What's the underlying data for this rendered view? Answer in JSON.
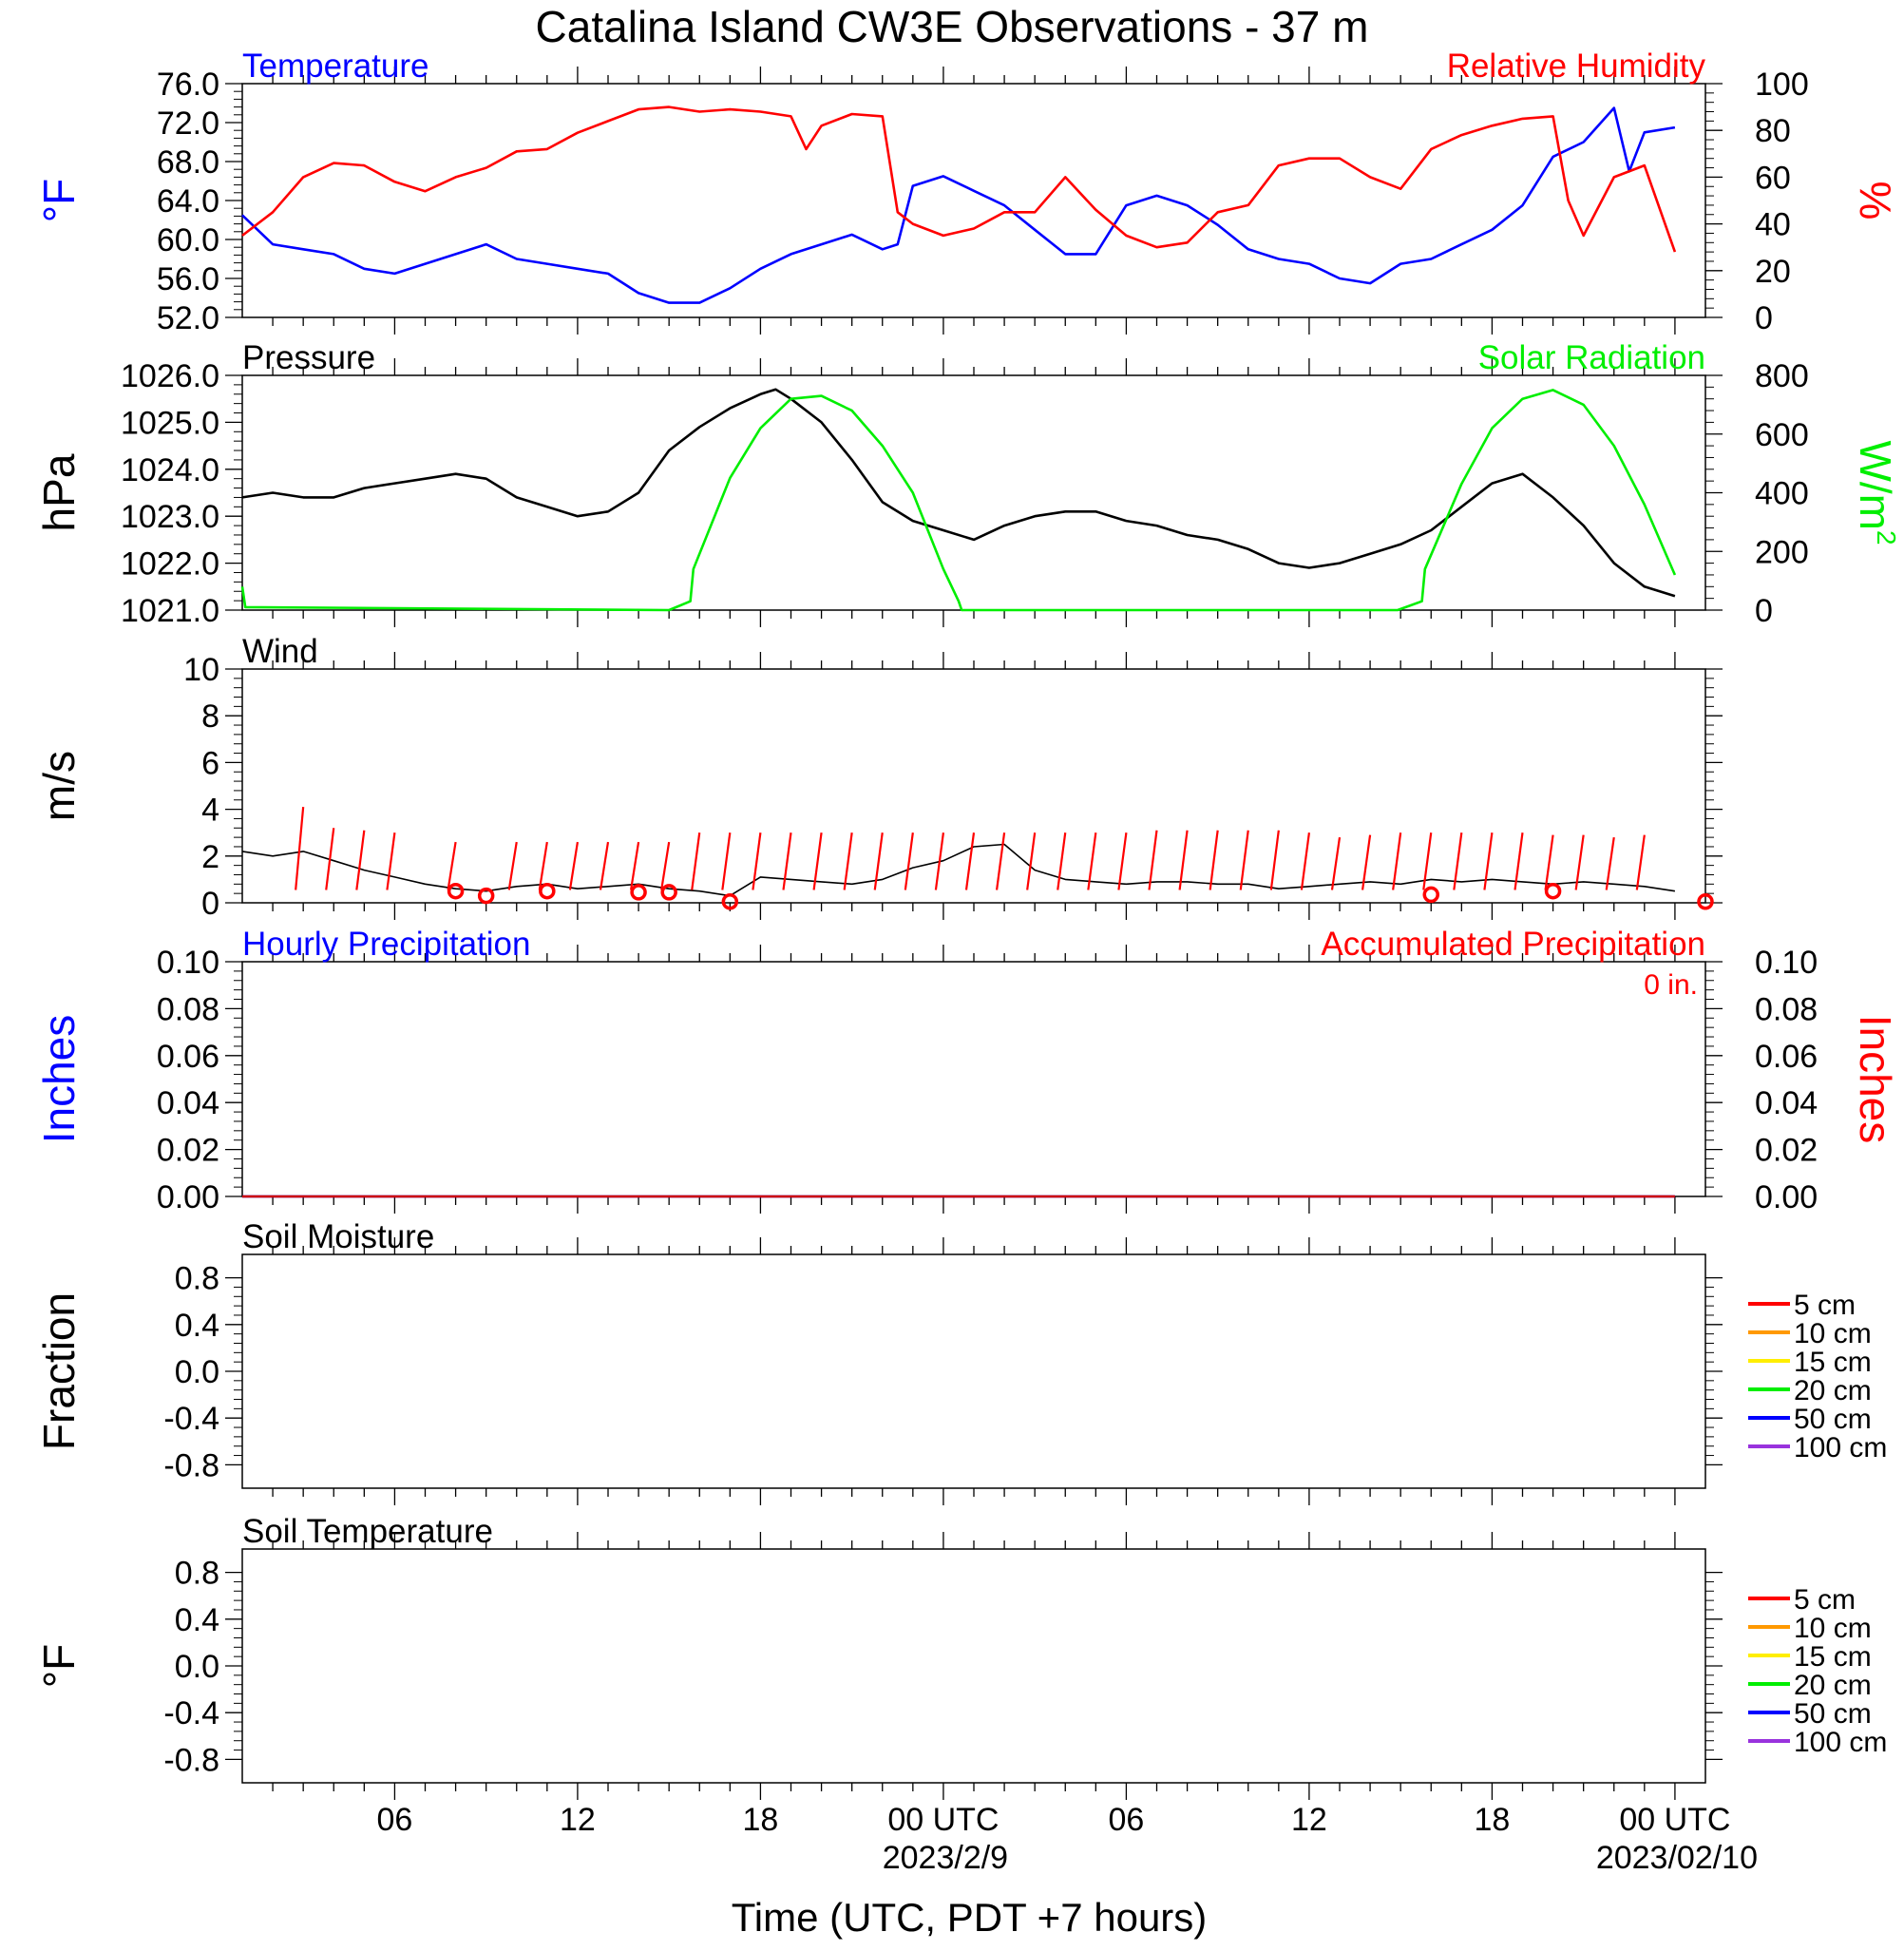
{
  "title": "Catalina Island CW3E Observations - 37 m",
  "xlabel": "Time (UTC, PDT +7 hours)",
  "x_ticks": [
    "06",
    "12",
    "18",
    "00 UTC",
    "06",
    "12",
    "18",
    "00 UTC"
  ],
  "x_dates": [
    "2023/2/9",
    "2023/02/10"
  ],
  "chart_data": [
    {
      "id": "temperature_rh",
      "type": "line",
      "left_title": "Temperature",
      "right_title": "Relative Humidity",
      "ylabel_left": "°F",
      "ylabel_right": "%",
      "ylim_left": [
        52,
        76
      ],
      "ylim_right": [
        0,
        100
      ],
      "yticks_left": [
        "52.0",
        "56.0",
        "60.0",
        "64.0",
        "68.0",
        "72.0",
        "76.0"
      ],
      "yticks_right": [
        "0",
        "20",
        "40",
        "60",
        "80",
        "100"
      ],
      "series": [
        {
          "name": "Temperature",
          "color": "#0000ff",
          "axis": "left",
          "x": [
            1,
            2,
            3,
            4,
            5,
            6,
            7,
            8,
            9,
            10,
            11,
            12,
            13,
            14,
            15,
            16,
            17,
            18,
            19,
            20,
            21,
            22,
            22.5,
            23,
            24,
            25,
            26,
            27,
            28,
            29,
            30,
            31,
            32,
            33,
            34,
            35,
            36,
            37,
            38,
            39,
            40,
            41,
            42,
            43,
            44,
            45,
            46,
            46.5,
            47,
            48
          ],
          "y": [
            62.5,
            59.5,
            59.0,
            58.5,
            57.0,
            56.5,
            57.5,
            58.5,
            59.5,
            58.0,
            57.5,
            57.0,
            56.5,
            54.5,
            53.5,
            53.5,
            55.0,
            57.0,
            58.5,
            59.5,
            60.5,
            59.0,
            59.5,
            65.5,
            66.5,
            65.0,
            63.5,
            61.0,
            58.5,
            58.5,
            63.5,
            64.5,
            63.5,
            61.5,
            59.0,
            58.0,
            57.5,
            56.0,
            55.5,
            57.5,
            58.0,
            59.5,
            61.0,
            63.5,
            68.5,
            70.0,
            73.5,
            67.0,
            71.0,
            71.5
          ]
        },
        {
          "name": "Relative Humidity",
          "color": "#ff0000",
          "axis": "right",
          "x": [
            1,
            2,
            3,
            4,
            5,
            6,
            7,
            8,
            9,
            10,
            11,
            12,
            13,
            14,
            15,
            16,
            17,
            18,
            19,
            19.5,
            20,
            21,
            22,
            22.5,
            23,
            24,
            25,
            26,
            27,
            28,
            29,
            30,
            31,
            32,
            33,
            34,
            35,
            36,
            37,
            38,
            39,
            40,
            41,
            42,
            43,
            44,
            44.5,
            45,
            46,
            47,
            48
          ],
          "y": [
            35,
            45,
            60,
            66,
            65,
            58,
            54,
            60,
            64,
            71,
            72,
            79,
            84,
            89,
            90,
            88,
            89,
            88,
            86,
            72,
            82,
            87,
            86,
            45,
            40,
            35,
            38,
            45,
            45,
            60,
            46,
            35,
            30,
            32,
            45,
            48,
            65,
            68,
            68,
            60,
            55,
            72,
            78,
            82,
            85,
            86,
            50,
            35,
            60,
            65,
            28
          ]
        }
      ]
    },
    {
      "id": "pressure_solar",
      "type": "line",
      "left_title": "Pressure",
      "right_title": "Solar Radiation",
      "ylabel_left": "hPa",
      "ylabel_right": "W/m",
      "ylabel_right_sup": "2",
      "ylim_left": [
        1021,
        1026
      ],
      "ylim_right": [
        0,
        800
      ],
      "yticks_left": [
        "1021.0",
        "1022.0",
        "1023.0",
        "1024.0",
        "1025.0",
        "1026.0"
      ],
      "yticks_right": [
        "0",
        "200",
        "400",
        "600",
        "800"
      ],
      "series": [
        {
          "name": "Pressure",
          "color": "#000000",
          "axis": "left",
          "x": [
            1,
            2,
            3,
            4,
            5,
            6,
            7,
            8,
            9,
            10,
            11,
            12,
            13,
            14,
            15,
            16,
            17,
            18,
            18.5,
            19,
            20,
            21,
            22,
            23,
            24,
            25,
            26,
            27,
            28,
            29,
            30,
            31,
            32,
            33,
            34,
            35,
            36,
            37,
            38,
            39,
            40,
            41,
            42,
            43,
            44,
            45,
            46,
            47,
            48
          ],
          "y": [
            1023.4,
            1023.5,
            1023.4,
            1023.4,
            1023.6,
            1023.7,
            1023.8,
            1023.9,
            1023.8,
            1023.4,
            1023.2,
            1023.0,
            1023.1,
            1023.5,
            1024.4,
            1024.9,
            1025.3,
            1025.6,
            1025.7,
            1025.5,
            1025.0,
            1024.2,
            1023.3,
            1022.9,
            1022.7,
            1022.5,
            1022.8,
            1023.0,
            1023.1,
            1023.1,
            1022.9,
            1022.8,
            1022.6,
            1022.5,
            1022.3,
            1022.0,
            1021.9,
            1022.0,
            1022.2,
            1022.4,
            1022.7,
            1023.2,
            1023.7,
            1023.9,
            1023.4,
            1022.8,
            1022.0,
            1021.5,
            1021.3
          ]
        },
        {
          "name": "Solar Radiation",
          "color": "#00ee00",
          "axis": "right",
          "x": [
            1,
            1.1,
            15,
            15.7,
            15.8,
            17,
            18,
            19,
            20,
            21,
            22,
            23,
            24,
            24.5,
            24.6,
            25,
            38.9,
            39.7,
            39.8,
            41,
            42,
            43,
            44,
            45,
            46,
            47,
            48
          ],
          "y": [
            80,
            10,
            0,
            30,
            140,
            450,
            620,
            720,
            730,
            680,
            560,
            400,
            140,
            30,
            0,
            0,
            0,
            30,
            140,
            430,
            620,
            720,
            750,
            700,
            560,
            360,
            120
          ]
        }
      ]
    },
    {
      "id": "wind",
      "type": "line",
      "left_title": "Wind",
      "ylabel_left": "m/s",
      "ylim_left": [
        0,
        10
      ],
      "yticks_left": [
        "0",
        "2",
        "4",
        "6",
        "8",
        "10"
      ],
      "series": [
        {
          "name": "Wind",
          "color": "#000000",
          "axis": "left",
          "x": [
            1,
            2,
            3,
            4,
            5,
            6,
            7,
            8,
            9,
            10,
            11,
            12,
            13,
            14,
            15,
            16,
            17,
            18,
            19,
            20,
            21,
            22,
            23,
            24,
            25,
            26,
            27,
            28,
            29,
            30,
            31,
            32,
            33,
            34,
            35,
            36,
            37,
            38,
            39,
            40,
            41,
            42,
            43,
            44,
            45,
            46,
            47,
            48
          ],
          "y": [
            2.2,
            2.0,
            2.2,
            1.8,
            1.4,
            1.1,
            0.8,
            0.6,
            0.5,
            0.7,
            0.8,
            0.6,
            0.7,
            0.8,
            0.6,
            0.5,
            0.3,
            1.1,
            1.0,
            0.9,
            0.8,
            1.0,
            1.5,
            1.8,
            2.4,
            2.5,
            1.4,
            1.0,
            0.9,
            0.8,
            0.9,
            0.9,
            0.8,
            0.8,
            0.6,
            0.7,
            0.8,
            0.9,
            0.8,
            1.0,
            0.9,
            1.0,
            0.9,
            0.8,
            0.9,
            0.8,
            0.7,
            0.5
          ]
        },
        {
          "name": "Wind barbs",
          "color": "#ff0000",
          "axis": "left",
          "x": [
            3,
            4,
            5,
            6,
            8,
            10,
            11,
            12,
            13,
            14,
            15,
            16,
            17,
            18,
            19,
            20,
            21,
            22,
            23,
            24,
            25,
            26,
            27,
            28,
            29,
            30,
            31,
            32,
            33,
            34,
            35,
            36,
            37,
            38,
            39,
            40,
            41,
            42,
            43,
            44,
            45,
            46,
            47
          ],
          "y": [
            4.1,
            3.2,
            3.1,
            3.0,
            2.6,
            2.6,
            2.6,
            2.6,
            2.6,
            2.6,
            2.6,
            3.0,
            3.0,
            3.0,
            3.0,
            3.0,
            3.0,
            3.0,
            3.0,
            3.0,
            3.0,
            3.0,
            3.0,
            3.0,
            3.0,
            3.0,
            3.1,
            3.1,
            3.1,
            3.1,
            3.1,
            3.0,
            2.8,
            2.9,
            3.0,
            3.0,
            3.0,
            3.0,
            3.0,
            2.9,
            2.9,
            2.8,
            2.9
          ]
        },
        {
          "name": "Calm",
          "color": "#ff0000",
          "axis": "left",
          "x": [
            8,
            9,
            11,
            14,
            15,
            17,
            40,
            44,
            49
          ],
          "y": [
            0.5,
            0.3,
            0.5,
            0.45,
            0.45,
            0.05,
            0.35,
            0.5,
            0.05
          ]
        }
      ]
    },
    {
      "id": "precipitation",
      "type": "line",
      "left_title": "Hourly Precipitation",
      "right_title": "Accumulated Precipitation",
      "annotation": "0 in.",
      "ylabel_left": "Inches",
      "ylabel_right": "Inches",
      "ylim_left": [
        0,
        0.1
      ],
      "ylim_right": [
        0,
        0.1
      ],
      "yticks_left": [
        "0.00",
        "0.02",
        "0.04",
        "0.06",
        "0.08",
        "0.10"
      ],
      "yticks_right": [
        "0.00",
        "0.02",
        "0.04",
        "0.06",
        "0.08",
        "0.10"
      ],
      "series": [
        {
          "name": "Hourly Precipitation",
          "color": "#0000ff",
          "axis": "left",
          "x": [
            1,
            48
          ],
          "y": [
            0,
            0
          ]
        },
        {
          "name": "Accumulated Precipitation",
          "color": "#cc0000",
          "axis": "right",
          "x": [
            1,
            48
          ],
          "y": [
            0,
            0
          ]
        }
      ]
    },
    {
      "id": "soil_moisture",
      "type": "line",
      "left_title": "Soil Moisture",
      "ylabel_left": "Fraction",
      "ylim_left": [
        -1,
        1
      ],
      "yticks_left": [
        "-0.8",
        "-0.4",
        "0.0",
        "0.4",
        "0.8"
      ],
      "legend": [
        {
          "label": "5 cm",
          "color": "#ff0000"
        },
        {
          "label": "10 cm",
          "color": "#ff9900"
        },
        {
          "label": "15 cm",
          "color": "#ffee00"
        },
        {
          "label": "20 cm",
          "color": "#00ee00"
        },
        {
          "label": "50 cm",
          "color": "#0000ff"
        },
        {
          "label": "100 cm",
          "color": "#9933dd"
        }
      ]
    },
    {
      "id": "soil_temperature",
      "type": "line",
      "left_title": "Soil Temperature",
      "ylabel_left": "°F",
      "ylim_left": [
        -1,
        1
      ],
      "yticks_left": [
        "-0.8",
        "-0.4",
        "0.0",
        "0.4",
        "0.8"
      ],
      "legend": [
        {
          "label": "5 cm",
          "color": "#ff0000"
        },
        {
          "label": "10 cm",
          "color": "#ff9900"
        },
        {
          "label": "15 cm",
          "color": "#ffee00"
        },
        {
          "label": "20 cm",
          "color": "#00ee00"
        },
        {
          "label": "50 cm",
          "color": "#0000ff"
        },
        {
          "label": "100 cm",
          "color": "#9933dd"
        }
      ]
    }
  ]
}
